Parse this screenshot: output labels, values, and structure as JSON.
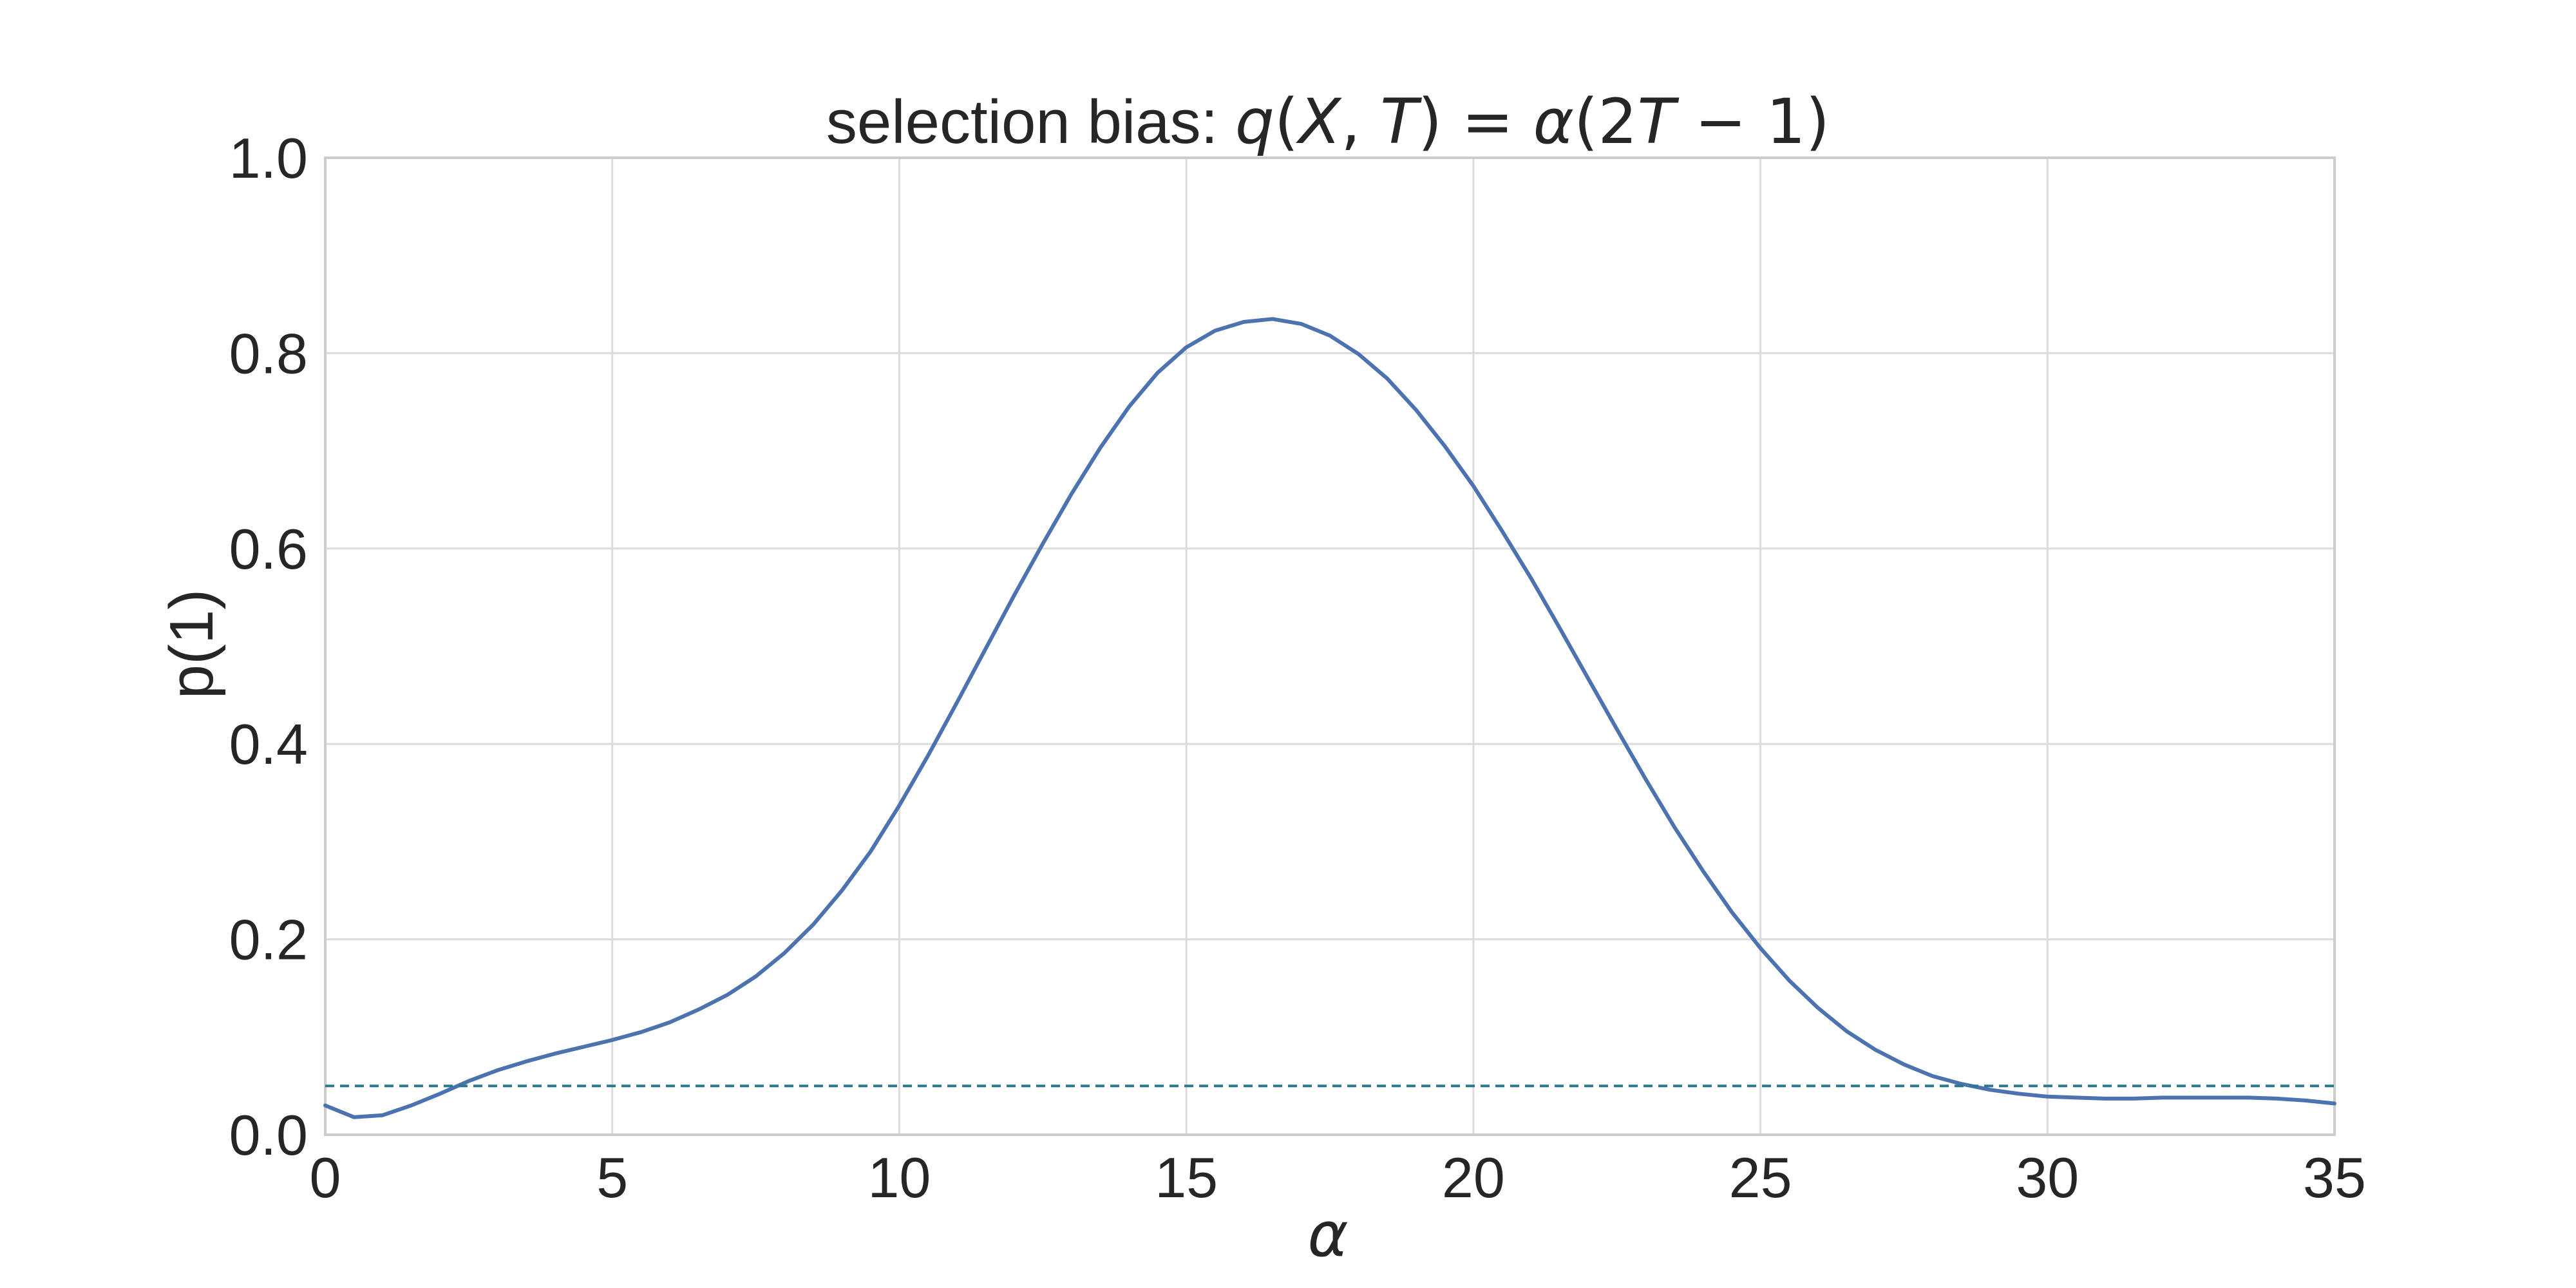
{
  "chart_data": {
    "type": "line",
    "title": {
      "prefix": "selection bias: ",
      "math_q": "q",
      "math_open": "(",
      "math_X": "X",
      "math_comma": ", ",
      "math_T": "T",
      "math_close_eq": ") = ",
      "math_alpha": "α",
      "math_open2": "(2",
      "math_T2": "T",
      "math_rest": " − 1)"
    },
    "xlabel": "α",
    "ylabel": "p(1)",
    "xlim": [
      0,
      35
    ],
    "ylim": [
      0,
      1.0
    ],
    "xticks": [
      0,
      5,
      10,
      15,
      20,
      25,
      30,
      35
    ],
    "xtick_labels": [
      "0",
      "5",
      "10",
      "15",
      "20",
      "25",
      "30",
      "35"
    ],
    "yticks": [
      0,
      0.2,
      0.4,
      0.6,
      0.8,
      1.0
    ],
    "ytick_labels": [
      "0.0",
      "0.2",
      "0.4",
      "0.6",
      "0.8",
      "1.0"
    ],
    "grid": true,
    "series": [
      {
        "color": "#4c72b0",
        "style": "solid",
        "x": [
          0,
          0.5,
          1,
          1.5,
          2,
          2.5,
          3,
          3.5,
          4,
          4.5,
          5,
          5.5,
          6,
          6.5,
          7,
          7.5,
          8,
          8.5,
          9,
          9.5,
          10,
          10.5,
          11,
          11.5,
          12,
          12.5,
          13,
          13.5,
          14,
          14.5,
          15,
          15.5,
          16,
          16.5,
          17,
          17.5,
          18,
          18.5,
          19,
          19.5,
          20,
          20.5,
          21,
          21.5,
          22,
          22.5,
          23,
          23.5,
          24,
          24.5,
          25,
          25.5,
          26,
          26.5,
          27,
          27.5,
          28,
          28.5,
          29,
          29.5,
          30,
          30.5,
          31,
          31.5,
          32,
          32.5,
          33,
          33.5,
          34,
          34.5,
          35
        ],
        "y": [
          0.03,
          0.018,
          0.02,
          0.03,
          0.042,
          0.055,
          0.066,
          0.075,
          0.083,
          0.09,
          0.097,
          0.105,
          0.115,
          0.128,
          0.143,
          0.162,
          0.186,
          0.215,
          0.25,
          0.29,
          0.337,
          0.388,
          0.442,
          0.497,
          0.552,
          0.605,
          0.656,
          0.703,
          0.745,
          0.78,
          0.806,
          0.823,
          0.832,
          0.835,
          0.83,
          0.818,
          0.799,
          0.774,
          0.742,
          0.705,
          0.664,
          0.618,
          0.57,
          0.519,
          0.467,
          0.415,
          0.364,
          0.315,
          0.27,
          0.228,
          0.191,
          0.158,
          0.13,
          0.106,
          0.087,
          0.072,
          0.06,
          0.052,
          0.046,
          0.042,
          0.039,
          0.038,
          0.037,
          0.037,
          0.038,
          0.038,
          0.038,
          0.038,
          0.037,
          0.035,
          0.032
        ]
      },
      {
        "color": "#2a788e",
        "style": "dashed",
        "x": [
          0,
          35
        ],
        "y": [
          0.05,
          0.05
        ]
      }
    ]
  }
}
